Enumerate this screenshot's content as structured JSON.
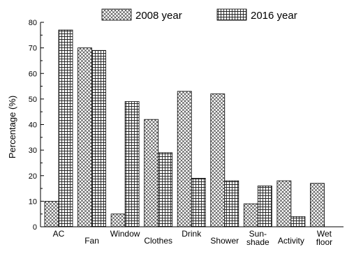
{
  "chart_data": {
    "type": "bar",
    "ylabel": "Percentage (%)",
    "xlabel": "",
    "ylim": [
      0,
      80
    ],
    "yticks": [
      0,
      10,
      20,
      30,
      40,
      50,
      60,
      70,
      80
    ],
    "grid": false,
    "legend_position": "top",
    "categories": [
      [
        "AC"
      ],
      [
        "Fan"
      ],
      [
        "Window"
      ],
      [
        "Clothes"
      ],
      [
        "Drink"
      ],
      [
        "Shower"
      ],
      [
        "Sun-",
        "shade"
      ],
      [
        "Activity"
      ],
      [
        "Wet",
        "floor"
      ]
    ],
    "series": [
      {
        "name": "2008 year",
        "pattern": "crosshatch-diagonal",
        "values": [
          10,
          70,
          5,
          42,
          53,
          52,
          9,
          18,
          17
        ]
      },
      {
        "name": "2016 year",
        "pattern": "grid",
        "values": [
          77,
          69,
          49,
          29,
          19,
          18,
          16,
          4,
          null
        ]
      }
    ]
  }
}
